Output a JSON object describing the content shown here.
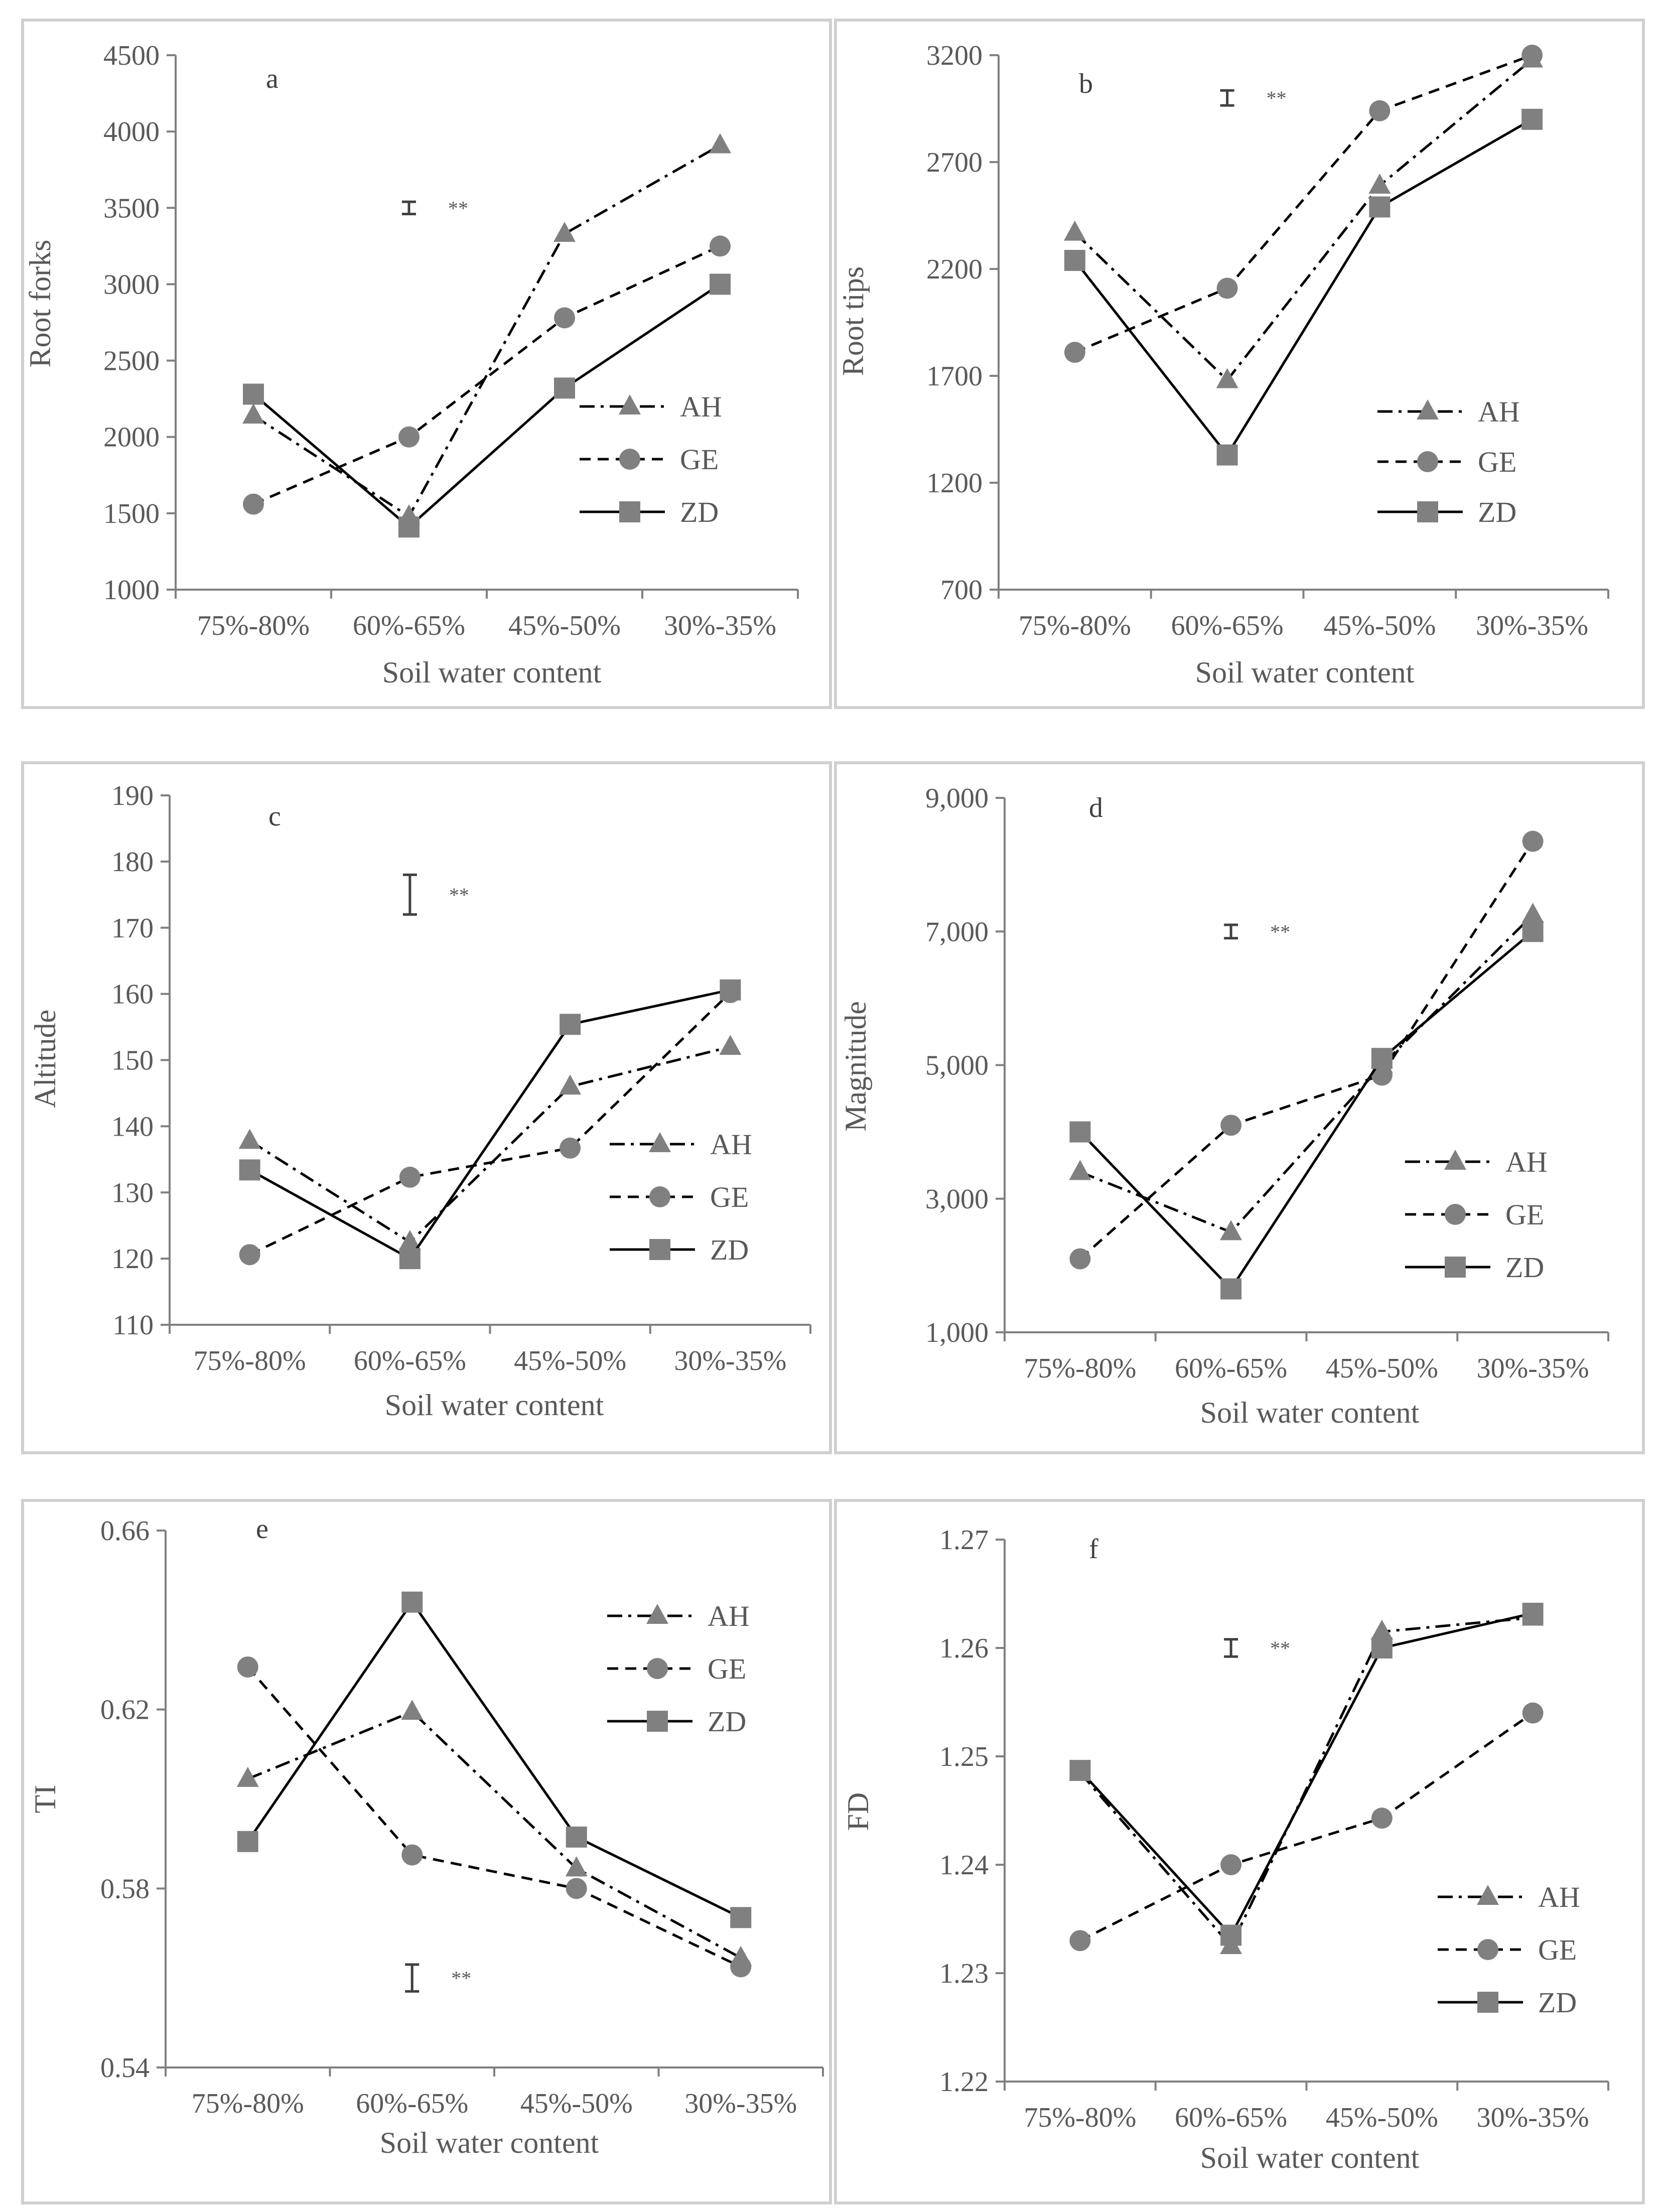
{
  "colors": {
    "line": "#000000",
    "marker": "#808080",
    "axis": "#808080",
    "text": "#595959",
    "frame": "#d0d0d0"
  },
  "chart_data": [
    {
      "type": "line",
      "panel": "a",
      "ylabel": "Root forks",
      "xlabel": "Soil water content",
      "categories": [
        "75%-80%",
        "60%-65%",
        "45%-50%",
        "30%-35%"
      ],
      "ylim": [
        1000,
        4500
      ],
      "yticks": [
        1000,
        1500,
        2000,
        2500,
        3000,
        3500,
        4000,
        4500
      ],
      "ytick_labels": [
        "1000",
        "1500",
        "2000",
        "2500",
        "3000",
        "3500",
        "4000",
        "4500"
      ],
      "series": [
        {
          "name": "AH",
          "style": "dashdot",
          "marker": "triangle",
          "values": [
            2140,
            1480,
            3330,
            3910
          ]
        },
        {
          "name": "GE",
          "style": "dashed",
          "marker": "circle",
          "values": [
            1560,
            2000,
            2780,
            3250
          ]
        },
        {
          "name": "ZD",
          "style": "solid",
          "marker": "square",
          "values": [
            2280,
            1410,
            2320,
            3000
          ]
        }
      ],
      "errorbar": {
        "category_index": 1.0,
        "center": 3500,
        "half_range": 40,
        "label": "**"
      }
    },
    {
      "type": "line",
      "panel": "b",
      "ylabel": "Root tips",
      "xlabel": "Soil water content",
      "categories": [
        "75%-80%",
        "60%-65%",
        "45%-50%",
        "30%-35%"
      ],
      "ylim": [
        700,
        3200
      ],
      "yticks": [
        700,
        1200,
        1700,
        2200,
        2700,
        3200
      ],
      "ytick_labels": [
        "700",
        "1200",
        "1700",
        "2200",
        "2700",
        "3200"
      ],
      "series": [
        {
          "name": "AH",
          "style": "dashdot",
          "marker": "triangle",
          "values": [
            2370,
            1680,
            2590,
            3180
          ]
        },
        {
          "name": "GE",
          "style": "dashed",
          "marker": "circle",
          "values": [
            1810,
            2110,
            2940,
            3200
          ]
        },
        {
          "name": "ZD",
          "style": "solid",
          "marker": "square",
          "values": [
            2240,
            1330,
            2490,
            2900
          ]
        }
      ],
      "errorbar": {
        "category_index": 1.0,
        "center": 3000,
        "half_range": 35,
        "label": "**"
      }
    },
    {
      "type": "line",
      "panel": "c",
      "ylabel": "Altitude",
      "xlabel": "Soil water content",
      "categories": [
        "75%-80%",
        "60%-65%",
        "45%-50%",
        "30%-35%"
      ],
      "ylim": [
        110,
        190
      ],
      "yticks": [
        110,
        120,
        130,
        140,
        150,
        160,
        170,
        180,
        190
      ],
      "ytick_labels": [
        "110",
        "120",
        "130",
        "140",
        "150",
        "160",
        "170",
        "180",
        "190"
      ],
      "series": [
        {
          "name": "AH",
          "style": "dashdot",
          "marker": "triangle",
          "values": [
            137.8,
            122.5,
            146.0,
            152.0
          ]
        },
        {
          "name": "GE",
          "style": "dashed",
          "marker": "circle",
          "values": [
            120.6,
            132.3,
            136.7,
            160.2
          ]
        },
        {
          "name": "ZD",
          "style": "solid",
          "marker": "square",
          "values": [
            133.4,
            120.0,
            155.4,
            160.6
          ]
        }
      ],
      "errorbar": {
        "category_index": 1.0,
        "center": 175.0,
        "half_range": 3.0,
        "label": "**"
      }
    },
    {
      "type": "line",
      "panel": "d",
      "ylabel": "Magnitude",
      "xlabel": "Soil water content",
      "categories": [
        "75%-80%",
        "60%-65%",
        "45%-50%",
        "30%-35%"
      ],
      "ylim": [
        1000,
        9000
      ],
      "yticks": [
        1000,
        3000,
        5000,
        7000,
        9000
      ],
      "ytick_labels": [
        "1,000",
        "3,000",
        "5,000",
        "7,000",
        "9,000"
      ],
      "series": [
        {
          "name": "AH",
          "style": "dashdot",
          "marker": "triangle",
          "values": [
            3400,
            2500,
            5000,
            7250
          ]
        },
        {
          "name": "GE",
          "style": "dashed",
          "marker": "circle",
          "values": [
            2100,
            4100,
            4850,
            8350
          ]
        },
        {
          "name": "ZD",
          "style": "solid",
          "marker": "square",
          "values": [
            4000,
            1650,
            5100,
            7000
          ]
        }
      ],
      "errorbar": {
        "category_index": 1.0,
        "center": 7000,
        "half_range": 100,
        "label": "**"
      }
    },
    {
      "type": "line",
      "panel": "e",
      "ylabel": "TI",
      "xlabel": "Soil water content",
      "categories": [
        "75%-80%",
        "60%-65%",
        "45%-50%",
        "30%-35%"
      ],
      "ylim": [
        0.54,
        0.66
      ],
      "yticks": [
        0.54,
        0.58,
        0.62,
        0.66
      ],
      "ytick_labels": [
        "0.54",
        "0.58",
        "0.62",
        "0.66"
      ],
      "series": [
        {
          "name": "AH",
          "style": "dashdot",
          "marker": "triangle",
          "values": [
            0.6045,
            0.6195,
            0.5845,
            0.5645
          ]
        },
        {
          "name": "GE",
          "style": "dashed",
          "marker": "circle",
          "values": [
            0.6295,
            0.5875,
            0.58,
            0.5625
          ]
        },
        {
          "name": "ZD",
          "style": "solid",
          "marker": "square",
          "values": [
            0.5905,
            0.644,
            0.5915,
            0.5735
          ]
        }
      ],
      "errorbar": {
        "category_index": 1.0,
        "center": 0.56,
        "half_range": 0.003,
        "label": "**"
      }
    },
    {
      "type": "line",
      "panel": "f",
      "ylabel": "FD",
      "xlabel": "Soil water content",
      "categories": [
        "75%-80%",
        "60%-65%",
        "45%-50%",
        "30%-35%"
      ],
      "ylim": [
        1.22,
        1.27
      ],
      "yticks": [
        1.22,
        1.23,
        1.24,
        1.25,
        1.26,
        1.27
      ],
      "ytick_labels": [
        "1.22",
        "1.23",
        "1.24",
        "1.25",
        "1.26",
        "1.27"
      ],
      "series": [
        {
          "name": "AH",
          "style": "dashdot",
          "marker": "triangle",
          "values": [
            1.2485,
            1.2325,
            1.2615,
            1.2628
          ]
        },
        {
          "name": "GE",
          "style": "dashed",
          "marker": "circle",
          "values": [
            1.233,
            1.24,
            1.2443,
            1.254
          ]
        },
        {
          "name": "ZD",
          "style": "solid",
          "marker": "square",
          "values": [
            1.2487,
            1.2335,
            1.26,
            1.2632
          ]
        }
      ],
      "errorbar": {
        "category_index": 1.0,
        "center": 1.26,
        "half_range": 0.0008,
        "label": "**"
      }
    }
  ]
}
